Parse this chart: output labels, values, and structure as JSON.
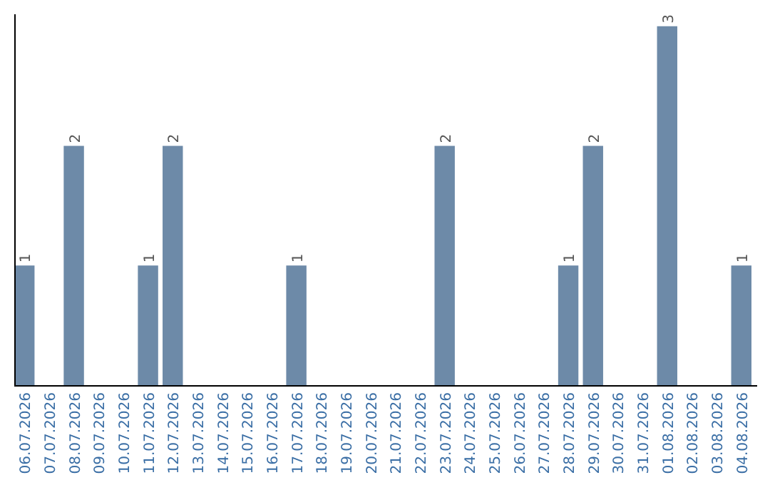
{
  "chart_data": {
    "type": "bar",
    "categories": [
      "06.07.2026",
      "07.07.2026",
      "08.07.2026",
      "09.07.2026",
      "10.07.2026",
      "11.07.2026",
      "12.07.2026",
      "13.07.2026",
      "14.07.2026",
      "15.07.2026",
      "16.07.2026",
      "17.07.2026",
      "18.07.2026",
      "19.07.2026",
      "20.07.2026",
      "21.07.2026",
      "22.07.2026",
      "23.07.2026",
      "24.07.2026",
      "25.07.2026",
      "26.07.2026",
      "27.07.2026",
      "28.07.2026",
      "29.07.2026",
      "30.07.2026",
      "31.07.2026",
      "01.08.2026",
      "02.08.2026",
      "03.08.2026",
      "04.08.2026"
    ],
    "values": [
      1,
      0,
      2,
      0,
      0,
      1,
      2,
      0,
      0,
      0,
      0,
      1,
      0,
      0,
      0,
      0,
      0,
      2,
      0,
      0,
      0,
      0,
      1,
      2,
      0,
      0,
      3,
      0,
      0,
      1
    ],
    "value_labels": [
      "1",
      null,
      "2",
      null,
      null,
      "1",
      "2",
      null,
      null,
      null,
      null,
      "1",
      null,
      null,
      null,
      null,
      null,
      "2",
      null,
      null,
      null,
      null,
      "1",
      "2",
      null,
      null,
      "3",
      null,
      null,
      "1"
    ],
    "color": "#6d8aa8",
    "ylim": [
      0,
      3.1
    ],
    "tick_labels": "x"
  }
}
